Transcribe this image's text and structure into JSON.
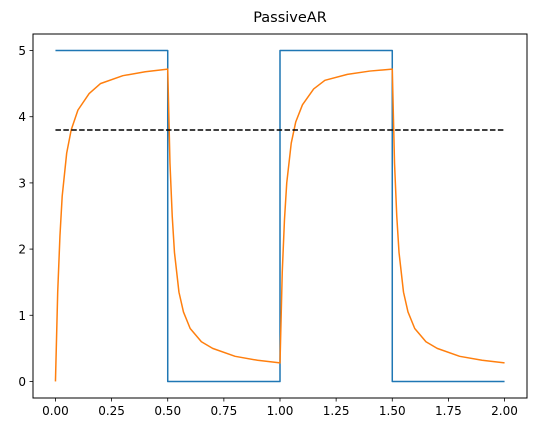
{
  "chart_data": {
    "type": "line",
    "title": "PassiveAR",
    "xlabel": "",
    "ylabel": "",
    "xlim": [
      -0.1,
      2.1
    ],
    "ylim": [
      -0.25,
      5.25
    ],
    "xticks": [
      0.0,
      0.25,
      0.5,
      0.75,
      1.0,
      1.25,
      1.5,
      1.75,
      2.0
    ],
    "xtick_labels": [
      "0.00",
      "0.25",
      "0.50",
      "0.75",
      "1.00",
      "1.25",
      "1.50",
      "1.75",
      "2.00"
    ],
    "yticks": [
      0,
      1,
      2,
      3,
      4,
      5
    ],
    "ytick_labels": [
      "0",
      "1",
      "2",
      "3",
      "4",
      "5"
    ],
    "grid": false,
    "legend": null,
    "series": [
      {
        "color": "#1f77b4",
        "style": "solid",
        "x": [
          0.0,
          0.5,
          0.5,
          1.0,
          1.0,
          1.5,
          1.5,
          2.0
        ],
        "y": [
          5,
          5,
          0,
          0,
          5,
          5,
          0,
          0
        ]
      },
      {
        "color": "#ff7f0e",
        "style": "solid",
        "x": [
          0.0,
          0.01,
          0.02,
          0.03,
          0.05,
          0.07,
          0.1,
          0.15,
          0.2,
          0.3,
          0.4,
          0.5,
          0.51,
          0.52,
          0.53,
          0.55,
          0.57,
          0.6,
          0.65,
          0.7,
          0.8,
          0.9,
          1.0,
          1.01,
          1.02,
          1.03,
          1.05,
          1.07,
          1.1,
          1.15,
          1.2,
          1.3,
          1.4,
          1.5,
          1.51,
          1.52,
          1.53,
          1.55,
          1.57,
          1.6,
          1.65,
          1.7,
          1.8,
          1.9,
          2.0
        ],
        "y": [
          0.0,
          1.35,
          2.2,
          2.8,
          3.45,
          3.8,
          4.1,
          4.35,
          4.5,
          4.62,
          4.68,
          4.72,
          3.3,
          2.5,
          1.95,
          1.35,
          1.05,
          0.8,
          0.6,
          0.5,
          0.38,
          0.32,
          0.28,
          1.65,
          2.45,
          3.0,
          3.6,
          3.92,
          4.18,
          4.42,
          4.55,
          4.64,
          4.69,
          4.72,
          3.3,
          2.5,
          1.95,
          1.35,
          1.05,
          0.8,
          0.6,
          0.5,
          0.38,
          0.32,
          0.28
        ]
      },
      {
        "color": "#000000",
        "style": "dashed",
        "x": [
          0.0,
          2.0
        ],
        "y": [
          3.8,
          3.8
        ]
      }
    ]
  }
}
